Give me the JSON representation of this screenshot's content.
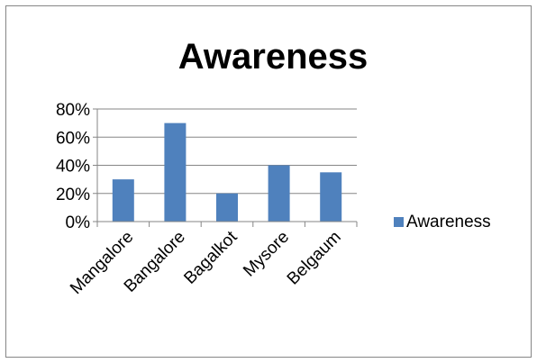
{
  "chart_data": {
    "type": "bar",
    "title": "Awareness",
    "categories": [
      "Mangalore",
      "Bangalore",
      "Bagalkot",
      "Mysore",
      "Belgaum"
    ],
    "series": [
      {
        "name": "Awareness",
        "values": [
          0.3,
          0.7,
          0.2,
          0.4,
          0.35
        ],
        "color": "#4f81bd"
      }
    ],
    "y_tick_values": [
      0,
      0.2,
      0.4,
      0.6,
      0.8
    ],
    "y_tick_labels": [
      "0%",
      "20%",
      "40%",
      "60%",
      "80%"
    ],
    "ylim": [
      0,
      0.8
    ],
    "grid": true,
    "legend_position": "right",
    "xlabel": "",
    "ylabel": ""
  }
}
